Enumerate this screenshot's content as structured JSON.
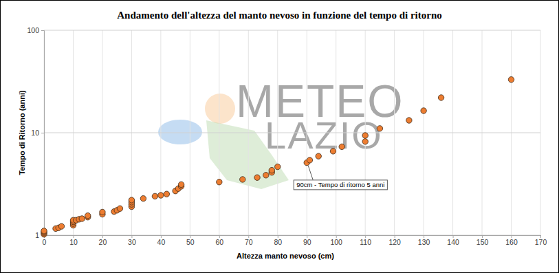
{
  "chart_data": {
    "type": "scatter",
    "title": "Andamento dell'altezza del manto nevoso in funzione del tempo di ritorno",
    "x_label": "Altezza manto nevoso (cm)",
    "y_label": "Tempo di Ritorno (anni)",
    "watermark": [
      "METEO",
      "LAZIO"
    ],
    "x": [
      0,
      0,
      0,
      0,
      4,
      5,
      6,
      10,
      10,
      10,
      10,
      11,
      12,
      13,
      15,
      15,
      20,
      20,
      24,
      25,
      26,
      30,
      30,
      30,
      30,
      34,
      38,
      40,
      42,
      45,
      46,
      47,
      47,
      60,
      68,
      73,
      76,
      78,
      78,
      80,
      90,
      91,
      94,
      99,
      102,
      110,
      110,
      115,
      125,
      130,
      136,
      160
    ],
    "values": [
      1.02,
      1.05,
      1.08,
      1.1,
      1.16,
      1.18,
      1.22,
      1.25,
      1.3,
      1.35,
      1.4,
      1.4,
      1.43,
      1.45,
      1.5,
      1.55,
      1.6,
      1.68,
      1.7,
      1.75,
      1.82,
      1.9,
      2.0,
      2.1,
      2.2,
      2.28,
      2.4,
      2.45,
      2.52,
      2.7,
      2.85,
      3.0,
      3.12,
      3.3,
      3.5,
      3.65,
      3.85,
      4.1,
      4.3,
      4.65,
      5.1,
      5.4,
      5.9,
      6.6,
      7.3,
      8.2,
      9.4,
      11,
      13.2,
      16.4,
      22,
      33
    ],
    "color": "#ed7d31",
    "marker": "circle",
    "xlim": [
      0,
      170
    ],
    "xticks": [
      0,
      10,
      20,
      30,
      40,
      50,
      60,
      70,
      80,
      90,
      100,
      110,
      120,
      130,
      140,
      150,
      160,
      170
    ],
    "ylim": [
      1,
      100
    ],
    "yticks": [
      1,
      10,
      100
    ],
    "log": "y",
    "grid": true,
    "annotations": [
      {
        "x": 90,
        "y": 5,
        "text": "90cm - Tempo di ritorno 5 anni"
      }
    ]
  }
}
